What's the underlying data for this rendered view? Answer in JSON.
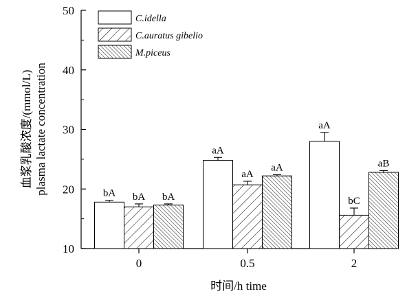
{
  "chart_data": {
    "type": "bar",
    "title": "",
    "xlabel": "时间/h time",
    "ylabel_line1": "血浆乳酸浓度/(mmol/L)",
    "ylabel_line2": "plasma lactate concentration",
    "categories": [
      "0",
      "0.5",
      "2"
    ],
    "ylim": [
      10,
      50
    ],
    "yticks": [
      10,
      20,
      30,
      40,
      50
    ],
    "grid": false,
    "legend_position": "top-left",
    "series": [
      {
        "name": "C.idella",
        "pattern": "solid-white",
        "values": [
          17.8,
          24.8,
          28.0
        ],
        "errors": [
          0.3,
          0.5,
          1.5
        ],
        "labels": [
          "bA",
          "aA",
          "aA"
        ]
      },
      {
        "name": "C.auratus gibelio",
        "pattern": "diagonal-sparse",
        "values": [
          17.0,
          20.7,
          15.6
        ],
        "errors": [
          0.5,
          0.6,
          1.2
        ],
        "labels": [
          "bA",
          "aA",
          "bC"
        ]
      },
      {
        "name": "M.piceus",
        "pattern": "diagonal-dense",
        "values": [
          17.3,
          22.2,
          22.8
        ],
        "errors": [
          0.2,
          0.2,
          0.3
        ],
        "labels": [
          "bA",
          "aA",
          "aB"
        ]
      }
    ]
  }
}
